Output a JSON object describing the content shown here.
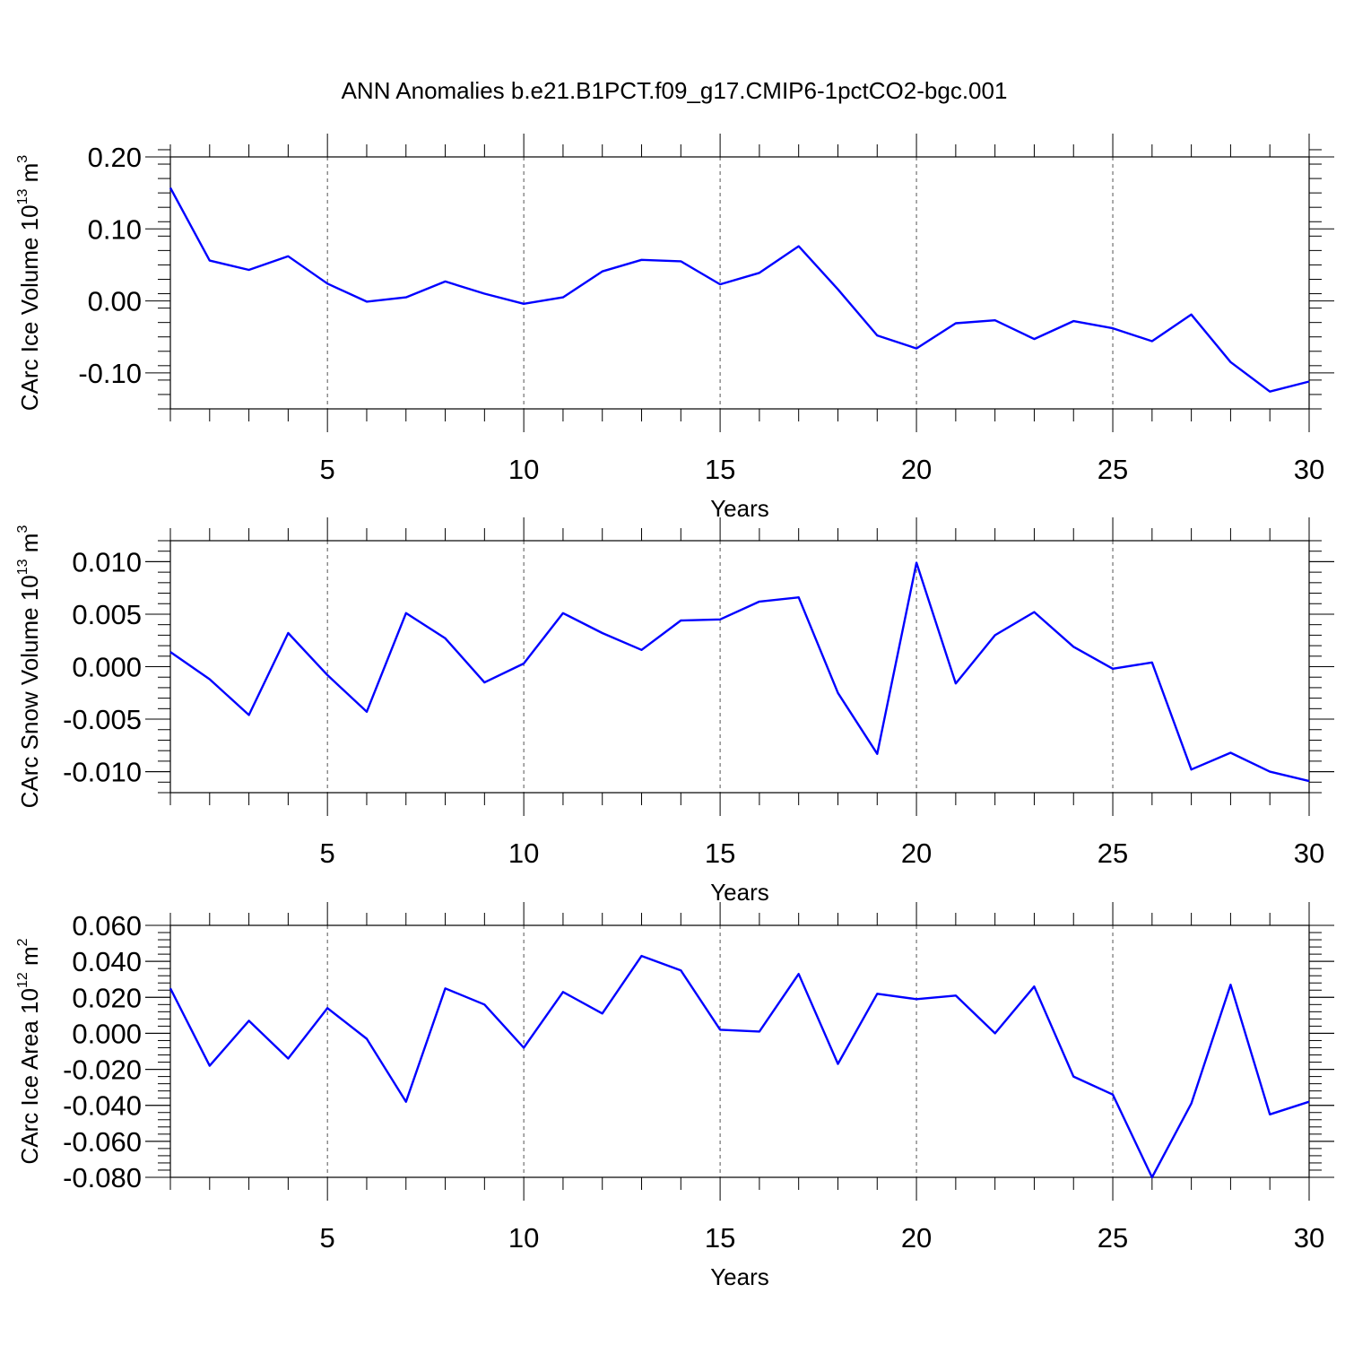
{
  "title": "ANN Anomalies b.e21.B1PCT.f09_g17.CMIP6-1pctCO2-bgc.001",
  "colors": {
    "line": "#0000ff",
    "frame": "#000000",
    "grid": "#555555"
  },
  "chart_data": [
    {
      "type": "line",
      "xlabel": "Years",
      "ylabel": {
        "pre": "CArc Ice Volume 10",
        "exp": "13",
        "post": " m",
        "unit_exp": "3"
      },
      "xlim": [
        1,
        30
      ],
      "ylim": [
        -0.15,
        0.2
      ],
      "x_major_ticks": [
        5,
        10,
        15,
        20,
        25,
        30
      ],
      "x_tick_labels": [
        "5",
        "10",
        "15",
        "20",
        "25",
        "30"
      ],
      "y_major_ticks": [
        0.2,
        0.1,
        0.0,
        -0.1
      ],
      "y_tick_labels": [
        "0.20",
        "0.10",
        "0.00",
        "-0.10"
      ],
      "y_minor_step": 0.02,
      "x_grid_dashed": [
        5,
        10,
        15,
        20,
        25
      ],
      "x": [
        1,
        2,
        3,
        4,
        5,
        6,
        7,
        8,
        9,
        10,
        11,
        12,
        13,
        14,
        15,
        16,
        17,
        18,
        19,
        20,
        21,
        22,
        23,
        24,
        25,
        26,
        27,
        28,
        29,
        30
      ],
      "values": [
        0.157,
        0.056,
        0.043,
        0.062,
        0.024,
        -0.001,
        0.005,
        0.027,
        0.01,
        -0.004,
        0.005,
        0.041,
        0.057,
        0.055,
        0.023,
        0.039,
        0.076,
        0.016,
        -0.048,
        -0.066,
        -0.031,
        -0.027,
        -0.053,
        -0.028,
        -0.038,
        -0.056,
        -0.019,
        -0.085,
        -0.126,
        -0.112
      ]
    },
    {
      "type": "line",
      "xlabel": "Years",
      "ylabel": {
        "pre": "CArc Snow Volume 10",
        "exp": "13",
        "post": " m",
        "unit_exp": "3"
      },
      "xlim": [
        1,
        30
      ],
      "ylim": [
        -0.012,
        0.012
      ],
      "x_major_ticks": [
        5,
        10,
        15,
        20,
        25,
        30
      ],
      "x_tick_labels": [
        "5",
        "10",
        "15",
        "20",
        "25",
        "30"
      ],
      "y_major_ticks": [
        0.01,
        0.005,
        0.0,
        -0.005,
        -0.01
      ],
      "y_tick_labels": [
        "0.010",
        "0.005",
        "0.000",
        "-0.005",
        "-0.010"
      ],
      "y_minor_step": 0.001,
      "x_grid_dashed": [
        5,
        10,
        15,
        20,
        25
      ],
      "x": [
        1,
        2,
        3,
        4,
        5,
        6,
        7,
        8,
        9,
        10,
        11,
        12,
        13,
        14,
        15,
        16,
        17,
        18,
        19,
        20,
        21,
        22,
        23,
        24,
        25,
        26,
        27,
        28,
        29,
        30
      ],
      "values": [
        0.0014,
        -0.0012,
        -0.0046,
        0.0032,
        -0.0008,
        -0.0043,
        0.0051,
        0.0027,
        -0.0015,
        0.0003,
        0.0051,
        0.0032,
        0.0016,
        0.0044,
        0.0045,
        0.0062,
        0.0066,
        -0.0025,
        -0.0083,
        0.0099,
        -0.0016,
        0.003,
        0.0052,
        0.0019,
        -0.0002,
        0.0004,
        -0.0098,
        -0.0082,
        -0.01,
        -0.0109
      ]
    },
    {
      "type": "line",
      "xlabel": "Years",
      "ylabel": {
        "pre": "CArc Ice Area 10",
        "exp": "12",
        "post": " m",
        "unit_exp": "2"
      },
      "xlim": [
        1,
        30
      ],
      "ylim": [
        -0.08,
        0.06
      ],
      "x_major_ticks": [
        5,
        10,
        15,
        20,
        25,
        30
      ],
      "x_tick_labels": [
        "5",
        "10",
        "15",
        "20",
        "25",
        "30"
      ],
      "y_major_ticks": [
        0.06,
        0.04,
        0.02,
        0.0,
        -0.02,
        -0.04,
        -0.06,
        -0.08
      ],
      "y_tick_labels": [
        "0.060",
        "0.040",
        "0.020",
        "0.000",
        "-0.020",
        "-0.040",
        "-0.060",
        "-0.080"
      ],
      "y_minor_step": 0.004,
      "x_grid_dashed": [
        5,
        10,
        15,
        20,
        25
      ],
      "x": [
        1,
        2,
        3,
        4,
        5,
        6,
        7,
        8,
        9,
        10,
        11,
        12,
        13,
        14,
        15,
        16,
        17,
        18,
        19,
        20,
        21,
        22,
        23,
        24,
        25,
        26,
        27,
        28,
        29,
        30
      ],
      "values": [
        0.025,
        -0.018,
        0.007,
        -0.014,
        0.014,
        -0.003,
        -0.038,
        0.025,
        0.016,
        -0.008,
        0.023,
        0.011,
        0.043,
        0.035,
        0.002,
        0.001,
        0.033,
        -0.017,
        0.022,
        0.019,
        0.021,
        0.0,
        0.026,
        -0.024,
        -0.034,
        -0.08,
        -0.039,
        0.027,
        -0.045,
        -0.038
      ]
    }
  ]
}
